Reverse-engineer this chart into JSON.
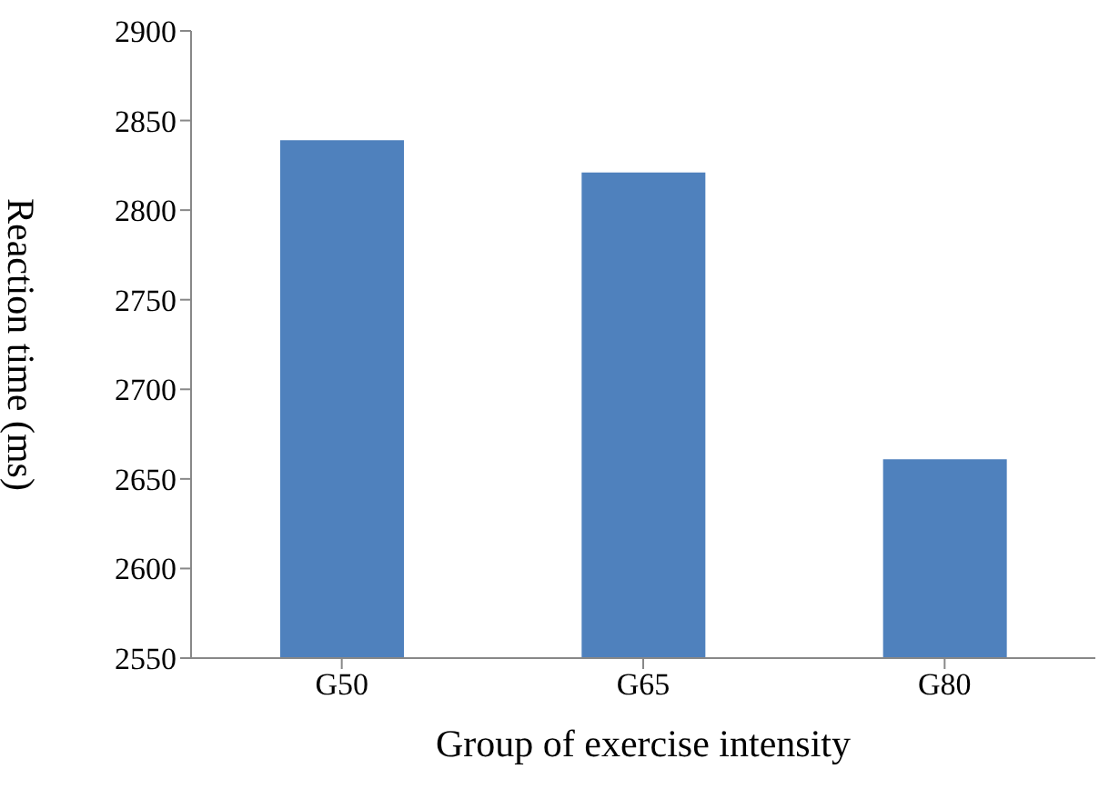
{
  "chart_data": {
    "type": "bar",
    "xlabel": "Group of exercise intensity",
    "ylabel": "Reaction time (ms)",
    "categories": [
      "G50",
      "G65",
      "G80"
    ],
    "values": [
      2839,
      2821,
      2661
    ],
    "color": "#4f81bd",
    "ylim": [
      2550,
      2900
    ],
    "yticks": [
      2550,
      2600,
      2650,
      2700,
      2750,
      2800,
      2850,
      2900
    ],
    "grid": false,
    "legend": false
  }
}
